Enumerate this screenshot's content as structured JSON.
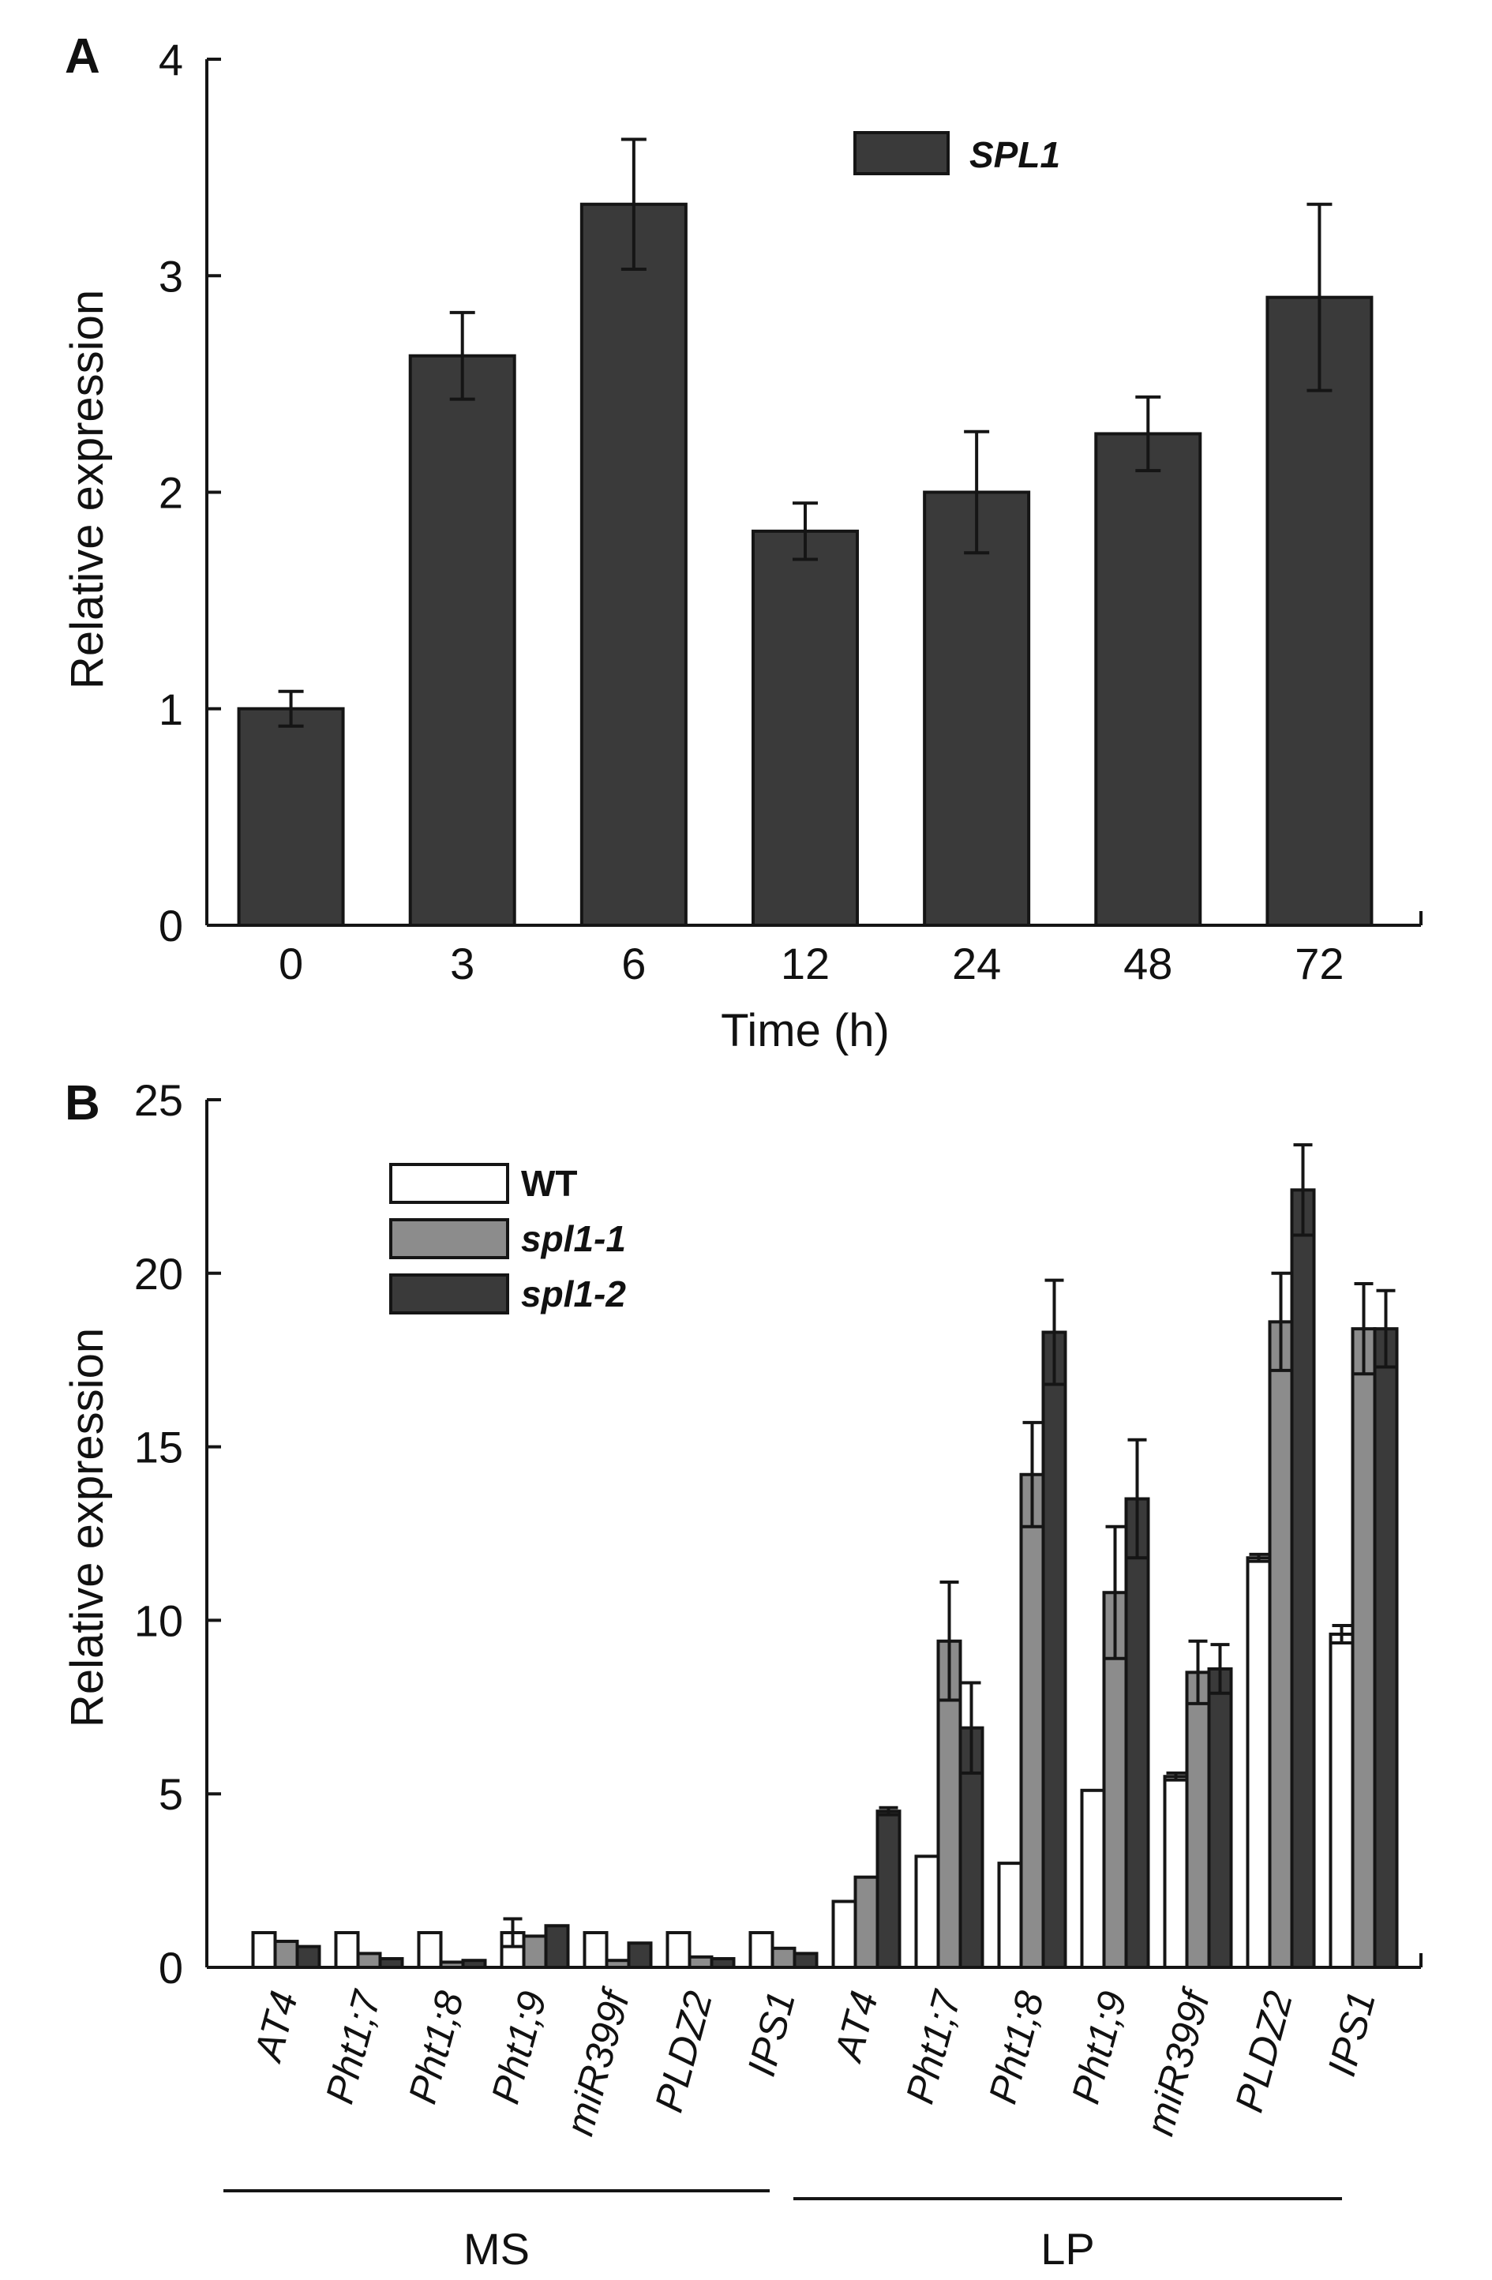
{
  "chart_data": [
    {
      "panel": "A",
      "type": "bar",
      "categories": [
        "0",
        "3",
        "6",
        "12",
        "24",
        "48",
        "72"
      ],
      "series": [
        {
          "name": "SPL1",
          "values": [
            1.0,
            2.63,
            3.33,
            1.82,
            2.0,
            2.27,
            2.9
          ],
          "errors": [
            0.08,
            0.2,
            0.3,
            0.13,
            0.28,
            0.17,
            0.43
          ],
          "color": "#3a3a3a"
        }
      ],
      "xlabel": "Time (h)",
      "ylabel": "Relative expression",
      "ylim": [
        0,
        4
      ],
      "yticks": [
        "0",
        "1",
        "2",
        "3",
        "4"
      ],
      "legend": "top-right",
      "grid": false
    },
    {
      "panel": "B",
      "type": "bar",
      "categories": [
        "AT4",
        "Pht1;7",
        "Pht1;8",
        "Pht1;9",
        "miR399f",
        "PLDZ2",
        "IPS1",
        "AT4",
        "Pht1;7",
        "Pht1;8",
        "Pht1;9",
        "miR399f",
        "PLDZ2",
        "IPS1"
      ],
      "groups": [
        {
          "label": "MS",
          "from": 0,
          "to": 6
        },
        {
          "label": "LP",
          "from": 7,
          "to": 13
        }
      ],
      "series": [
        {
          "name": "WT",
          "values": [
            1.0,
            1.0,
            1.0,
            1.0,
            1.0,
            1.0,
            1.0,
            1.9,
            3.2,
            3.0,
            5.1,
            5.5,
            11.8,
            9.6
          ],
          "errors": [
            0,
            0,
            0,
            0.4,
            0,
            0,
            0,
            0,
            0,
            0,
            0,
            0.1,
            0.1,
            0.25
          ],
          "color": "#ffffff"
        },
        {
          "name": "spl1-1",
          "values": [
            0.75,
            0.4,
            0.15,
            0.9,
            0.2,
            0.3,
            0.55,
            2.6,
            9.4,
            14.2,
            10.8,
            8.5,
            18.6,
            18.4
          ],
          "errors": [
            0,
            0,
            0,
            0,
            0,
            0,
            0,
            0,
            1.7,
            1.5,
            1.9,
            0.9,
            1.4,
            1.3
          ],
          "color": "#8c8c8c"
        },
        {
          "name": "spl1-2",
          "values": [
            0.6,
            0.25,
            0.2,
            1.2,
            0.7,
            0.25,
            0.4,
            4.5,
            6.9,
            18.3,
            13.5,
            8.6,
            22.4,
            18.4
          ],
          "errors": [
            0,
            0,
            0,
            0,
            0,
            0,
            0,
            0.1,
            1.3,
            1.5,
            1.7,
            0.7,
            1.3,
            1.1
          ],
          "color": "#3a3a3a"
        }
      ],
      "ylabel": "Relative expression",
      "ylim": [
        0,
        25
      ],
      "yticks": [
        "0",
        "5",
        "10",
        "15",
        "20",
        "25"
      ],
      "legend": "top-left",
      "grid": false
    }
  ]
}
